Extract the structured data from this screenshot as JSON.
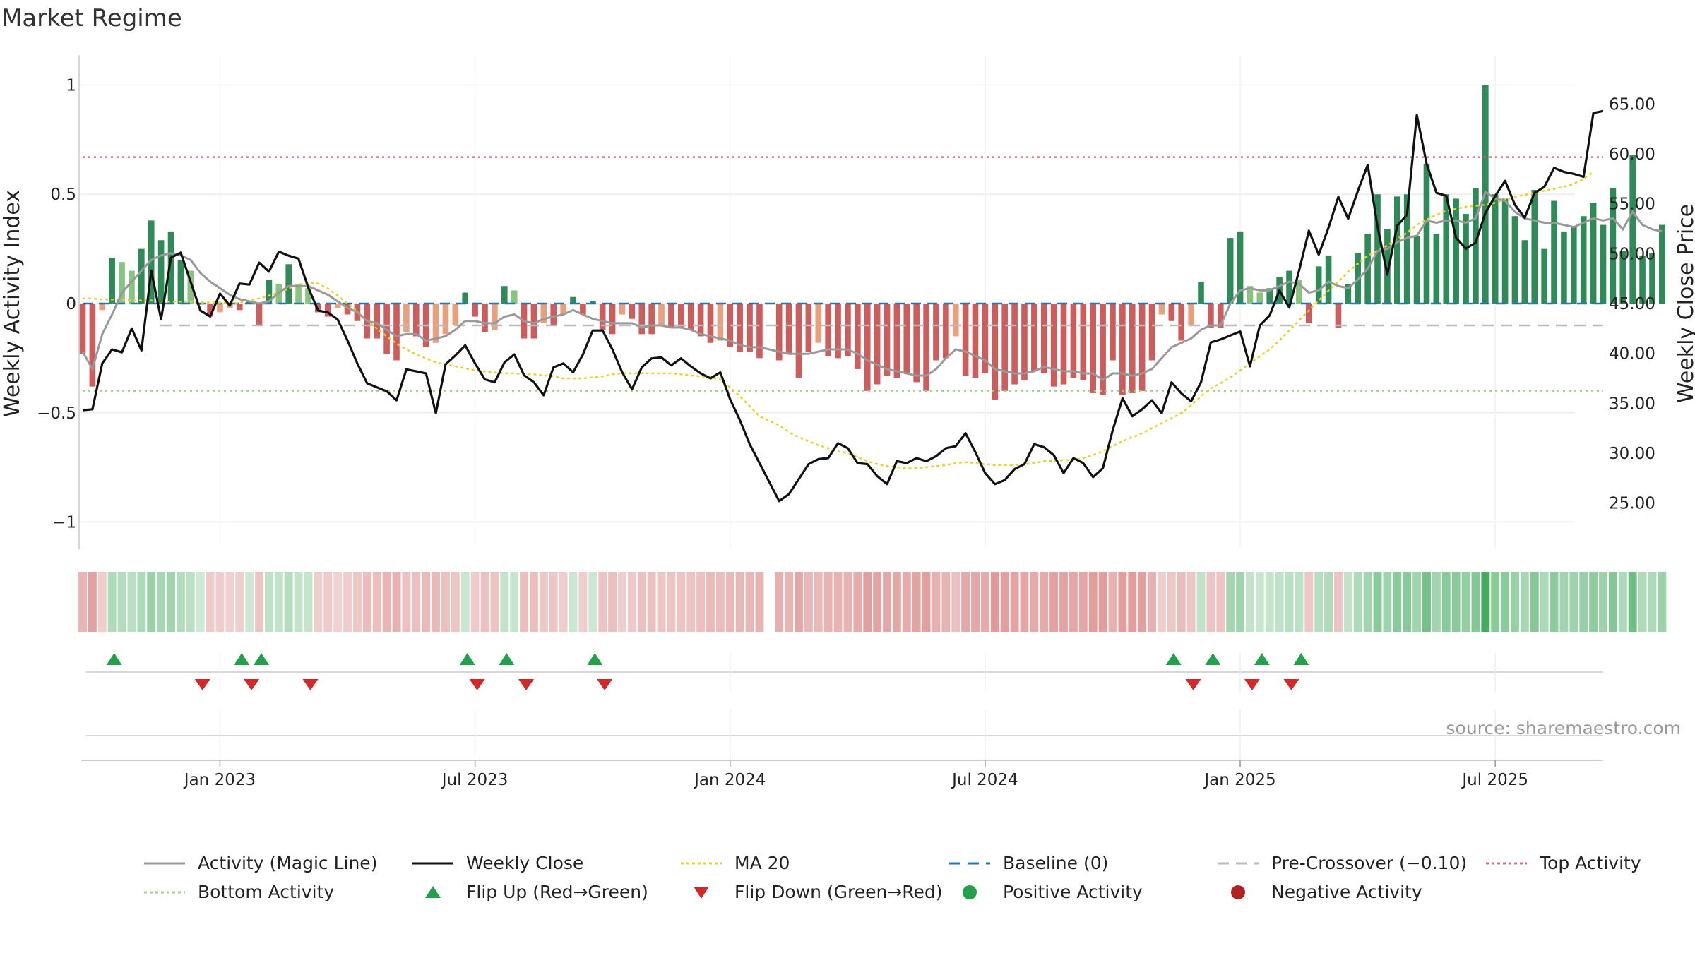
{
  "page": {
    "title": "Market Regime"
  },
  "source_note": "source: sharemaestro.com",
  "colors": {
    "activity_line": "#999999",
    "close_line": "#111111",
    "ma20": "#e8d22a",
    "baseline": "#1f77b4",
    "pre_crossover": "#bbbbbb",
    "top_activity": "#e06c7a",
    "bottom_activity": "#9ed57a",
    "pos_strong": "#2e8b57",
    "pos_light": "#86c47f",
    "neg_strong": "#cd5c5c",
    "neg_light": "#e9a07f",
    "flip_up": "#22a04a",
    "flip_down": "#d62728"
  },
  "chart_data": {
    "type": "bar",
    "title": "Market Regime",
    "ylabel_left": "Weekly Activity Index",
    "ylabel_right": "Weekly Close Price",
    "ylim_left": [
      -1.05,
      1.05
    ],
    "ylim_right": [
      22.0,
      68.0
    ],
    "yticks_left": [
      {
        "v": 1,
        "label": "1"
      },
      {
        "v": 0.5,
        "label": "0.5"
      },
      {
        "v": 0,
        "label": "0"
      },
      {
        "v": -0.5,
        "label": "−0.5"
      },
      {
        "v": -1,
        "label": "−1"
      }
    ],
    "yticks_right": [
      {
        "v": 65,
        "label": "65.00"
      },
      {
        "v": 60,
        "label": "60.00"
      },
      {
        "v": 55,
        "label": "55.00"
      },
      {
        "v": 50,
        "label": "50.00"
      },
      {
        "v": 45,
        "label": "45.00"
      },
      {
        "v": 40,
        "label": "40.00"
      },
      {
        "v": 35,
        "label": "35.00"
      },
      {
        "v": 30,
        "label": "30.00"
      },
      {
        "v": 25,
        "label": "25.00"
      }
    ],
    "xticks": [
      {
        "week": 17,
        "label": "Jan 2023"
      },
      {
        "week": 43,
        "label": "Jul 2023"
      },
      {
        "week": 69,
        "label": "Jan 2024"
      },
      {
        "week": 95,
        "label": "Jul 2024"
      },
      {
        "week": 121,
        "label": "Jan 2025"
      },
      {
        "week": 147,
        "label": "Jul 2025"
      }
    ],
    "x_range_weeks": [
      3,
      158
    ],
    "gap_week": 73,
    "reference_lines": {
      "top_activity": 0.67,
      "bottom_activity": -0.4,
      "baseline": 0,
      "pre_crossover": -0.1
    },
    "activity": [
      -0.23,
      -0.38,
      -0.03,
      0.21,
      0.19,
      0.15,
      0.25,
      0.38,
      0.29,
      0.33,
      0.2,
      0.15,
      0.0,
      -0.06,
      -0.04,
      -0.02,
      -0.03,
      0.01,
      -0.1,
      0.11,
      0.09,
      0.18,
      0.09,
      0.07,
      -0.04,
      -0.06,
      -0.02,
      -0.05,
      -0.08,
      -0.16,
      -0.16,
      -0.23,
      -0.26,
      -0.13,
      -0.15,
      -0.2,
      -0.18,
      -0.14,
      -0.1,
      0.05,
      -0.06,
      -0.13,
      -0.12,
      0.08,
      0.06,
      -0.16,
      -0.16,
      -0.09,
      -0.1,
      -0.05,
      0.03,
      -0.05,
      0.01,
      -0.12,
      -0.14,
      -0.05,
      -0.07,
      -0.14,
      -0.14,
      -0.1,
      -0.11,
      -0.11,
      -0.12,
      -0.15,
      -0.18,
      -0.17,
      -0.2,
      -0.22,
      -0.22,
      -0.25,
      -0.26,
      -0.23,
      -0.34,
      -0.22,
      -0.18,
      -0.24,
      -0.25,
      -0.24,
      -0.3,
      -0.4,
      -0.37,
      -0.33,
      -0.34,
      -0.32,
      -0.36,
      -0.4,
      -0.26,
      -0.25,
      -0.15,
      -0.33,
      -0.34,
      -0.32,
      -0.44,
      -0.4,
      -0.37,
      -0.35,
      -0.31,
      -0.32,
      -0.38,
      -0.37,
      -0.34,
      -0.35,
      -0.41,
      -0.42,
      -0.26,
      -0.42,
      -0.41,
      -0.4,
      -0.26,
      -0.05,
      -0.08,
      -0.17,
      -0.1,
      0.1,
      -0.11,
      -0.11,
      0.3,
      0.33,
      0.08,
      0.05,
      0.07,
      0.12,
      0.15,
      0.11,
      -0.09,
      0.17,
      0.22,
      -0.11,
      0.09,
      0.23,
      0.32,
      0.5,
      0.34,
      0.49,
      0.5,
      0.31,
      0.64,
      0.32,
      0.5,
      0.48,
      0.41,
      0.53,
      1.0,
      0.5,
      0.48,
      0.4,
      0.29,
      0.52,
      0.25,
      0.47,
      0.33,
      0.35,
      0.4,
      0.46,
      0.36,
      0.53,
      0.24,
      0.68,
      0.22,
      0.23,
      0.36
    ],
    "activity_line": [
      -0.22,
      -0.3,
      -0.14,
      -0.05,
      0.05,
      0.1,
      0.15,
      0.2,
      0.22,
      0.23,
      0.22,
      0.2,
      0.14,
      0.1,
      0.07,
      0.04,
      0.02,
      0.01,
      0.0,
      0.01,
      0.05,
      0.08,
      0.08,
      0.08,
      0.06,
      0.04,
      0.01,
      -0.02,
      -0.04,
      -0.08,
      -0.09,
      -0.12,
      -0.15,
      -0.14,
      -0.14,
      -0.17,
      -0.16,
      -0.15,
      -0.12,
      -0.08,
      -0.08,
      -0.09,
      -0.09,
      -0.06,
      -0.05,
      -0.08,
      -0.09,
      -0.07,
      -0.06,
      -0.05,
      -0.03,
      -0.05,
      -0.07,
      -0.08,
      -0.09,
      -0.09,
      -0.09,
      -0.11,
      -0.1,
      -0.1,
      -0.11,
      -0.11,
      -0.12,
      -0.14,
      -0.15,
      -0.16,
      -0.17,
      -0.19,
      -0.2,
      -0.2,
      -0.22,
      -0.23,
      -0.23,
      -0.23,
      -0.22,
      -0.21,
      -0.21,
      -0.21,
      -0.23,
      -0.26,
      -0.28,
      -0.3,
      -0.31,
      -0.32,
      -0.33,
      -0.33,
      -0.3,
      -0.25,
      -0.21,
      -0.22,
      -0.24,
      -0.26,
      -0.3,
      -0.31,
      -0.32,
      -0.32,
      -0.31,
      -0.29,
      -0.3,
      -0.31,
      -0.31,
      -0.32,
      -0.32,
      -0.35,
      -0.32,
      -0.32,
      -0.33,
      -0.32,
      -0.3,
      -0.25,
      -0.2,
      -0.18,
      -0.16,
      -0.12,
      -0.1,
      -0.1,
      0.0,
      0.06,
      0.07,
      0.06,
      0.06,
      0.08,
      0.1,
      0.09,
      0.05,
      0.06,
      0.1,
      0.08,
      0.07,
      0.11,
      0.16,
      0.24,
      0.25,
      0.28,
      0.3,
      0.31,
      0.38,
      0.37,
      0.38,
      0.38,
      0.37,
      0.39,
      0.51,
      0.48,
      0.47,
      0.42,
      0.39,
      0.38,
      0.37,
      0.37,
      0.36,
      0.35,
      0.37,
      0.39,
      0.38,
      0.39,
      0.34,
      0.42,
      0.36,
      0.34,
      0.33
    ],
    "close": [
      34.3,
      34.4,
      39.0,
      40.4,
      40.1,
      42.5,
      40.3,
      48.3,
      43.4,
      49.6,
      50.1,
      47.2,
      44.3,
      43.7,
      46.0,
      44.8,
      47.0,
      46.9,
      49.1,
      48.2,
      50.2,
      49.8,
      49.5,
      46.6,
      44.3,
      44.1,
      43.4,
      41.3,
      39.0,
      37.0,
      36.6,
      36.2,
      35.3,
      38.4,
      38.2,
      38.0,
      34.0,
      38.9,
      39.8,
      40.8,
      39.0,
      37.4,
      37.1,
      39.1,
      39.9,
      37.8,
      37.1,
      35.8,
      38.6,
      39.0,
      38.1,
      39.9,
      42.3,
      42.3,
      40.4,
      38.1,
      36.4,
      38.6,
      39.5,
      39.6,
      38.8,
      39.5,
      38.7,
      38.0,
      37.5,
      38.1,
      35.4,
      33.3,
      30.9,
      29.0,
      25.2,
      25.9,
      27.4,
      28.9,
      29.4,
      29.5,
      31.0,
      30.5,
      29.0,
      28.9,
      27.7,
      26.9,
      29.2,
      29.0,
      29.5,
      29.2,
      29.7,
      30.5,
      30.7,
      32.0,
      30.1,
      28.0,
      26.9,
      27.3,
      28.4,
      28.9,
      30.9,
      30.6,
      29.8,
      28.0,
      29.5,
      29.0,
      27.6,
      28.5,
      32.3,
      35.5,
      33.7,
      34.4,
      35.3,
      34.0,
      37.1,
      36.0,
      35.2,
      37.1,
      41.1,
      41.4,
      41.8,
      42.2,
      38.7,
      42.8,
      43.8,
      46.3,
      44.6,
      48.3,
      52.3,
      49.9,
      52.6,
      55.7,
      53.5,
      56.3,
      58.9,
      52.7,
      47.9,
      52.8,
      53.9,
      63.9,
      59.0,
      56.1,
      55.8,
      51.6,
      50.5,
      51.1,
      54.1,
      55.8,
      57.3,
      54.9,
      53.6,
      56.1,
      56.7,
      58.6,
      58.2,
      58.0,
      57.7,
      64.1,
      64.3
    ],
    "ma20": [
      45.5,
      45.5,
      45.4,
      45.4,
      45.4,
      45.3,
      45.3,
      45.3,
      45.2,
      45.2,
      45.2,
      45.2,
      45.1,
      45.1,
      45.1,
      45.0,
      45.1,
      45.3,
      45.5,
      45.8,
      46.1,
      46.5,
      46.9,
      47.1,
      47.0,
      46.5,
      45.8,
      45.0,
      44.2,
      43.3,
      42.5,
      41.7,
      41.0,
      40.4,
      39.9,
      39.5,
      39.1,
      38.9,
      38.7,
      38.5,
      38.3,
      38.2,
      38.1,
      38.0,
      38.0,
      37.9,
      37.9,
      37.8,
      37.7,
      37.5,
      37.5,
      37.5,
      37.6,
      37.7,
      37.9,
      38.0,
      38.0,
      38.0,
      38.0,
      38.0,
      38.0,
      37.9,
      37.8,
      37.7,
      37.6,
      37.4,
      36.6,
      35.7,
      34.7,
      33.7,
      32.8,
      32.1,
      31.6,
      31.2,
      30.8,
      30.5,
      30.2,
      30.0,
      29.6,
      29.2,
      28.9,
      28.7,
      28.6,
      28.5,
      28.5,
      28.6,
      28.7,
      28.8,
      29.0,
      29.1,
      29.0,
      28.9,
      28.8,
      28.8,
      28.8,
      28.9,
      29.0,
      29.2,
      29.2,
      29.3,
      29.3,
      29.5,
      29.8,
      30.2,
      30.7,
      31.2,
      31.6,
      32.0,
      32.5,
      33.0,
      33.5,
      34.0,
      34.8,
      35.7,
      36.5,
      37.0,
      37.6,
      38.3,
      39.0,
      39.7,
      40.4,
      41.3,
      42.3,
      43.3,
      44.3,
      45.3,
      46.3,
      47.2,
      48.2,
      49.0,
      49.8,
      50.3,
      50.8,
      51.5,
      52.1,
      52.9,
      53.4,
      53.9,
      54.3,
      54.5,
      54.7,
      54.8,
      54.9,
      55.1,
      55.4,
      55.7,
      55.9,
      56.1,
      56.3,
      56.5,
      56.7,
      57.0,
      57.5,
      58.2
    ],
    "flip_up_weeks": [
      6,
      19,
      21,
      42,
      46,
      55,
      114,
      118,
      123,
      127
    ],
    "flip_down_weeks": [
      15,
      20,
      26,
      43,
      48,
      56,
      116,
      122,
      126
    ]
  },
  "legend": [
    {
      "label": "Activity (Magic Line)",
      "kind": "line-solid",
      "color": "#999999"
    },
    {
      "label": "Weekly Close",
      "kind": "line-solid",
      "color": "#111111"
    },
    {
      "label": "MA 20",
      "kind": "line-dotted",
      "color": "#e8d22a"
    },
    {
      "label": "Baseline (0)",
      "kind": "line-dashed",
      "color": "#1f77b4"
    },
    {
      "label": "Pre-Crossover (−0.10)",
      "kind": "line-dashed",
      "color": "#bbbbbb"
    },
    {
      "label": "Top Activity",
      "kind": "line-dotted",
      "color": "#e06c7a"
    },
    {
      "label": "Bottom Activity",
      "kind": "line-dotted",
      "color": "#9ed57a"
    },
    {
      "label": "Flip Up (Red→Green)",
      "kind": "tri-up",
      "color": "#22a04a"
    },
    {
      "label": "Flip Down (Green→Red)",
      "kind": "tri-down",
      "color": "#d62728"
    },
    {
      "label": "Positive Activity",
      "kind": "dot",
      "color": "#22a04a"
    },
    {
      "label": "Negative Activity",
      "kind": "dot",
      "color": "#b22222"
    }
  ]
}
